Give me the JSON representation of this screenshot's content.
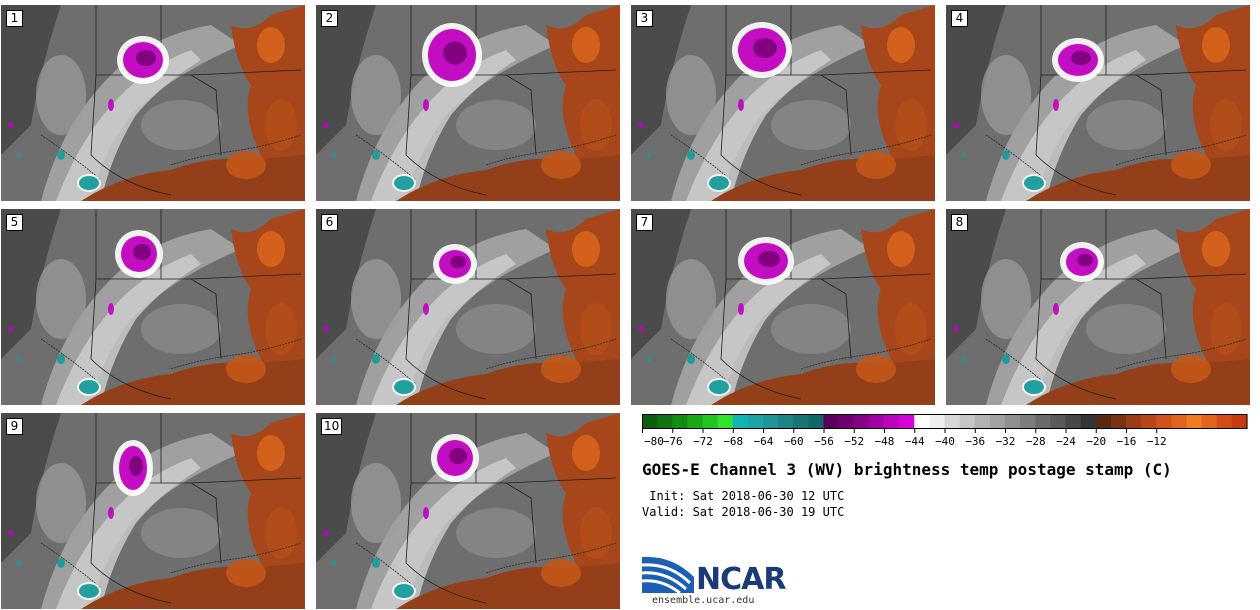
{
  "panels": [
    {
      "label": "1"
    },
    {
      "label": "2"
    },
    {
      "label": "3"
    },
    {
      "label": "4"
    },
    {
      "label": "5"
    },
    {
      "label": "6"
    },
    {
      "label": "7"
    },
    {
      "label": "8"
    },
    {
      "label": "9"
    },
    {
      "label": "10"
    }
  ],
  "colorbar": {
    "colors": [
      "#0b5e0b",
      "#0f740f",
      "#138c13",
      "#18a818",
      "#22c522",
      "#2fe32f",
      "#0fb5b5",
      "#1aa6a6",
      "#1f9595",
      "#1d8585",
      "#177575",
      "#116666",
      "#5a005a",
      "#6e006e",
      "#860086",
      "#a200a2",
      "#bd00bd",
      "#d800d8",
      "#ffffff",
      "#eeeeee",
      "#d7d7d7",
      "#c5c5c5",
      "#b3b3b3",
      "#a1a1a1",
      "#8f8f8f",
      "#7d7d7d",
      "#6b6b6b",
      "#595959",
      "#474747",
      "#353535",
      "#5a2a10",
      "#7a3214",
      "#9a3c16",
      "#b94618",
      "#d0541a",
      "#e2631c",
      "#f07c1e",
      "#e6621a",
      "#d44a16",
      "#c83a12"
    ],
    "tick_labels": [
      "−80",
      "−76",
      "−72",
      "−68",
      "−64",
      "−60",
      "−56",
      "−52",
      "−48",
      "−44",
      "−40",
      "−36",
      "−32",
      "−28",
      "−24",
      "−20",
      "−16",
      "−12"
    ]
  },
  "title": "GOES-E Channel 3 (WV) brightness temp postage stamp (C)",
  "init_line": " Init: Sat 2018-06-30 12 UTC",
  "valid_line": "Valid: Sat 2018-06-30 19 UTC",
  "logo": {
    "text": "NCAR",
    "url": "ensemble.ucar.edu",
    "color": "#1a3b78"
  }
}
